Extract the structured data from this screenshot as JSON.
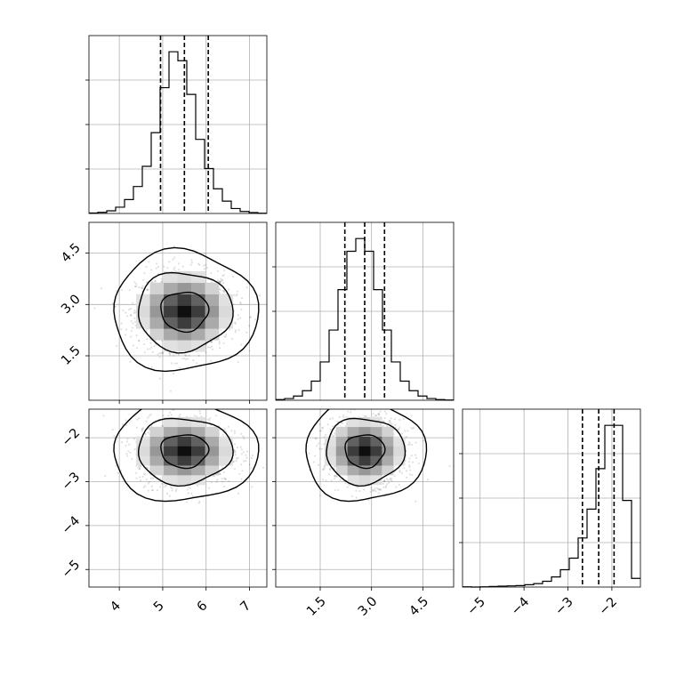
{
  "chart_data": {
    "type": "corner",
    "n_params": 3,
    "colors": {
      "line": "#000000",
      "grid": "#b0b0b0",
      "points": "#9a9a9a"
    },
    "grid": true,
    "params": [
      {
        "mean": 5.5,
        "std": 0.55,
        "range": [
          3.3,
          7.4
        ],
        "ticks": [
          4,
          5,
          6,
          7
        ],
        "tick_labels": [
          "4",
          "5",
          "6",
          "7"
        ]
      },
      {
        "mean": 2.8,
        "std": 0.58,
        "range": [
          0.2,
          5.4
        ],
        "ticks": [
          1.5,
          3.0,
          4.5
        ],
        "tick_labels": [
          "1.5",
          "3.0",
          "4.5"
        ]
      },
      {
        "mean": -2.3,
        "std": 0.38,
        "range": [
          -5.4,
          -1.35
        ],
        "ticks": [
          -5,
          -4,
          -3,
          -2
        ],
        "tick_labels": [
          "−5",
          "−4",
          "−3",
          "−2"
        ]
      }
    ],
    "quantiles": [
      [
        4.95,
        5.5,
        6.05
      ],
      [
        2.22,
        2.8,
        3.38
      ],
      [
        -2.67,
        -2.3,
        -1.95
      ]
    ],
    "histograms": [
      {
        "range": [
          3.3,
          7.4
        ],
        "bins": 20,
        "counts": [
          2,
          5,
          12,
          28,
          62,
          120,
          210,
          360,
          560,
          720,
          680,
          530,
          330,
          200,
          110,
          55,
          22,
          9,
          4,
          1
        ]
      },
      {
        "range": [
          0.2,
          5.4
        ],
        "bins": 20,
        "counts": [
          3,
          8,
          20,
          45,
          90,
          180,
          330,
          520,
          700,
          760,
          700,
          520,
          330,
          180,
          90,
          45,
          20,
          8,
          3,
          1
        ]
      },
      {
        "range": [
          -5.4,
          -1.35
        ],
        "bins": 20,
        "counts": [
          1,
          0,
          1,
          2,
          3,
          4,
          5,
          8,
          12,
          20,
          35,
          60,
          100,
          170,
          270,
          410,
          560,
          560,
          300,
          30
        ]
      }
    ],
    "contour_levels": [
      0.39,
      0.86,
      0.99
    ]
  }
}
